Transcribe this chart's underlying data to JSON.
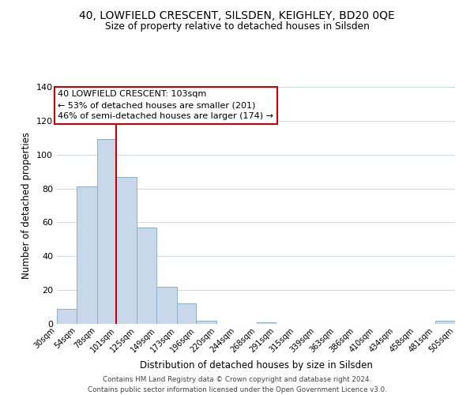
{
  "title": "40, LOWFIELD CRESCENT, SILSDEN, KEIGHLEY, BD20 0QE",
  "subtitle": "Size of property relative to detached houses in Silsden",
  "xlabel": "Distribution of detached houses by size in Silsden",
  "ylabel": "Number of detached properties",
  "bar_color": "#c8d8ea",
  "bar_edge_color": "#8ab0cc",
  "vline_x": 101,
  "vline_color": "#cc0000",
  "annotation_title": "40 LOWFIELD CRESCENT: 103sqm",
  "annotation_line2": "← 53% of detached houses are smaller (201)",
  "annotation_line3": "46% of semi-detached houses are larger (174) →",
  "annotation_box_edge": "#cc0000",
  "bins": [
    30,
    54,
    78,
    101,
    125,
    149,
    173,
    196,
    220,
    244,
    268,
    291,
    315,
    339,
    363,
    386,
    410,
    434,
    458,
    481,
    505
  ],
  "counts": [
    9,
    81,
    109,
    87,
    57,
    22,
    12,
    2,
    0,
    0,
    1,
    0,
    0,
    0,
    0,
    0,
    0,
    0,
    0,
    2
  ],
  "tick_labels": [
    "30sqm",
    "54sqm",
    "78sqm",
    "101sqm",
    "125sqm",
    "149sqm",
    "173sqm",
    "196sqm",
    "220sqm",
    "244sqm",
    "268sqm",
    "291sqm",
    "315sqm",
    "339sqm",
    "363sqm",
    "386sqm",
    "410sqm",
    "434sqm",
    "458sqm",
    "481sqm",
    "505sqm"
  ],
  "ylim": [
    0,
    140
  ],
  "yticks": [
    0,
    20,
    40,
    60,
    80,
    100,
    120,
    140
  ],
  "footer_line1": "Contains HM Land Registry data © Crown copyright and database right 2024.",
  "footer_line2": "Contains public sector information licensed under the Open Government Licence v3.0.",
  "background_color": "#ffffff",
  "grid_color": "#ccdde8"
}
